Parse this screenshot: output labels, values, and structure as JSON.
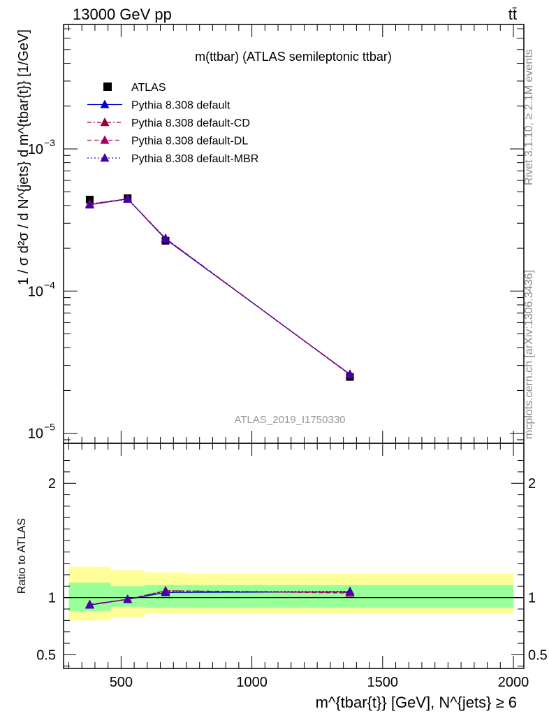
{
  "header": {
    "left": "13000 GeV pp",
    "right": "tt̄"
  },
  "side": {
    "top": "Rivet 3.1.10, ≥ 2.1M events",
    "bottom": "mcplots.cern.ch [arXiv:1306.3436]"
  },
  "watermark": "ATLAS_2019_I1750330",
  "colors": {
    "default": "#0000cc",
    "cd": "#990033",
    "dl": "#aa0066",
    "mbr": "#4400aa",
    "band_inner": "#99ff99",
    "band_outer": "#ffff99"
  },
  "chart_data": {
    "type": "line",
    "title": "m(ttbar) (ATLAS semileptonic ttbar)",
    "xlabel": "m^{tbar{t}} [GeV], N^{jets} ≥ 6",
    "ylabel": "1 / σ d²σ / d N^{jets} d m^{tbar{t}} [1/GeV]",
    "ratio_ylabel": "Ratio to ATLAS",
    "xlim": [
      280,
      2040
    ],
    "ylim": [
      8.5e-06,
      0.0075
    ],
    "yscale": "log",
    "ratio_ylim": [
      0.38,
      2.35
    ],
    "x_ticks": [
      500,
      1000,
      1500,
      2000
    ],
    "x_tick_labels": [
      "500",
      "1000",
      "1500",
      "2000"
    ],
    "y_ticks": [
      1e-05,
      0.0001,
      0.001
    ],
    "y_tick_labels": [
      "10",
      "10",
      "10"
    ],
    "y_tick_exponents": [
      "−5",
      "−4",
      "−3"
    ],
    "ratio_ticks": [
      0.5,
      1,
      2
    ],
    "ratio_tick_labels": [
      "0.5",
      "1",
      "2"
    ],
    "bins": [
      {
        "lo": 300,
        "hi": 460,
        "x": 380,
        "value": 0.00044,
        "band_inner": [
          0.88,
          1.13
        ],
        "band_outer": [
          0.8,
          1.27
        ]
      },
      {
        "lo": 460,
        "hi": 590,
        "x": 525,
        "value": 0.00045,
        "band_inner": [
          0.92,
          1.1
        ],
        "band_outer": [
          0.83,
          1.24
        ]
      },
      {
        "lo": 590,
        "hi": 750,
        "x": 670,
        "value": 0.000226,
        "band_inner": [
          0.91,
          1.11
        ],
        "band_outer": [
          0.86,
          1.22
        ]
      },
      {
        "lo": 750,
        "hi": 2000,
        "x": 1375,
        "value": 2.49e-05,
        "band_inner": [
          0.91,
          1.11
        ],
        "band_outer": [
          0.86,
          1.21
        ]
      }
    ],
    "series": [
      {
        "name": "ATLAS",
        "style": "data",
        "values": [
          0.00044,
          0.00045,
          0.000226,
          2.49e-05
        ]
      },
      {
        "name": "Pythia 8.308 default",
        "style": "solid",
        "color": "#0000cc",
        "values": [
          0.000405,
          0.000445,
          0.000232,
          2.6e-05
        ],
        "ratio": [
          0.935,
          0.985,
          1.045,
          1.05
        ]
      },
      {
        "name": "Pythia 8.308 default-CD",
        "style": "dashdot",
        "color": "#990033",
        "values": [
          0.00041,
          0.000446,
          0.000235,
          2.59e-05
        ],
        "ratio": [
          0.94,
          0.985,
          1.06,
          1.045
        ]
      },
      {
        "name": "Pythia 8.308 default-DL",
        "style": "dashed",
        "color": "#aa0066",
        "values": [
          0.000408,
          0.000445,
          0.000234,
          2.58e-05
        ],
        "ratio": [
          0.94,
          0.985,
          1.06,
          1.04
        ]
      },
      {
        "name": "Pythia 8.308 default-MBR",
        "style": "dotted",
        "color": "#4400aa",
        "values": [
          0.000404,
          0.000443,
          0.000233,
          2.6e-05
        ],
        "ratio": [
          0.935,
          0.985,
          1.05,
          1.055
        ]
      }
    ],
    "legend": "top-left",
    "grid": false
  }
}
